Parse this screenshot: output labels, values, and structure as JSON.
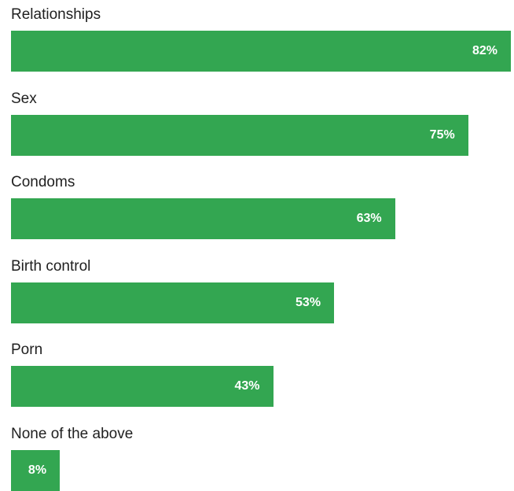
{
  "colors": {
    "bar": "#33a651",
    "label_text": "#1f1f1f",
    "value_text": "#ffffff",
    "background": "#ffffff"
  },
  "chart_data": {
    "type": "bar",
    "orientation": "horizontal",
    "categories": [
      "Relationships",
      "Sex",
      "Condoms",
      "Birth control",
      "Porn",
      "None of the above"
    ],
    "values": [
      82,
      75,
      63,
      53,
      43,
      8
    ],
    "value_labels": [
      "82%",
      "75%",
      "63%",
      "53%",
      "43%",
      "8%"
    ],
    "unit": "%",
    "xlim": [
      0,
      82
    ],
    "grid": false,
    "legend": "none"
  }
}
